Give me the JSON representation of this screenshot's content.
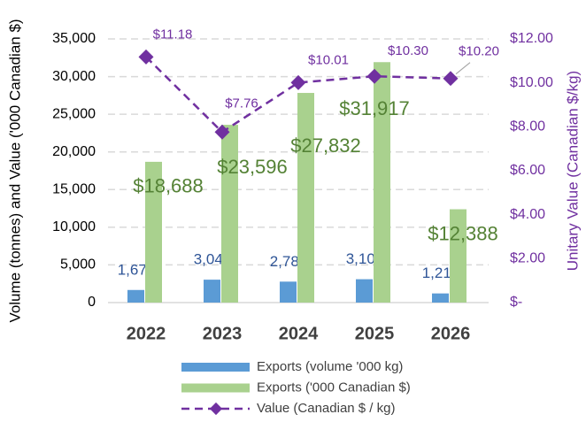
{
  "chart_data": {
    "type": "bar",
    "categories": [
      "2022",
      "2023",
      "2024",
      "2025",
      "2026"
    ],
    "series": [
      {
        "name": "Exports (volume  '000 kg)",
        "color": "#5b9bd5",
        "values": [
          1671,
          3040,
          2780,
          3100,
          1214
        ],
        "value_labels": [
          "1,671",
          "3,040",
          "2,780",
          "3,100",
          "1,214"
        ],
        "label_color": "#2f5597"
      },
      {
        "name": "Exports ('000 Canadian $)",
        "color": "#a9d18e",
        "values": [
          18688,
          23596,
          27832,
          31917,
          12388
        ],
        "value_labels": [
          "$18,688",
          "$23,596",
          "$27,832",
          "$31,917",
          "$12,388"
        ],
        "label_color": "#548235"
      },
      {
        "name": "Value (Canadian $ / kg)",
        "type": "line",
        "axis": "y2",
        "color": "#7030a0",
        "values": [
          11.18,
          7.76,
          10.01,
          10.3,
          10.2
        ],
        "value_labels": [
          "$11.18",
          "$7.76",
          "$10.01",
          "$10.30",
          "$10.20"
        ]
      }
    ],
    "y_label": "Volume (tonnes) and Value ('000 Canadian $)",
    "y2_label": "Unitary Value (Canadian $/kg)",
    "ylim": [
      0,
      35000
    ],
    "yticks": [
      0,
      {
        "value": 5000,
        "label": "5,000"
      },
      {
        "value": 10000,
        "label": "10,000"
      },
      {
        "value": 15000,
        "label": "15,000"
      },
      {
        "value": 20000,
        "label": "20,000"
      },
      {
        "value": 25000,
        "label": "25,000"
      },
      {
        "value": 30000,
        "label": "30,000"
      },
      {
        "value": 35000,
        "label": "35,000"
      }
    ],
    "y2lim": [
      0,
      12
    ],
    "y2ticks": [
      {
        "value": 0,
        "label": "$-"
      },
      {
        "value": 2,
        "label": "$2.00"
      },
      {
        "value": 4,
        "label": "$4.00"
      },
      {
        "value": 6,
        "label": "$6.00"
      },
      {
        "value": 8,
        "label": "$8.00"
      },
      {
        "value": 10,
        "label": "$10.00"
      },
      {
        "value": 12,
        "label": "$12.00"
      }
    ],
    "grid": true
  }
}
